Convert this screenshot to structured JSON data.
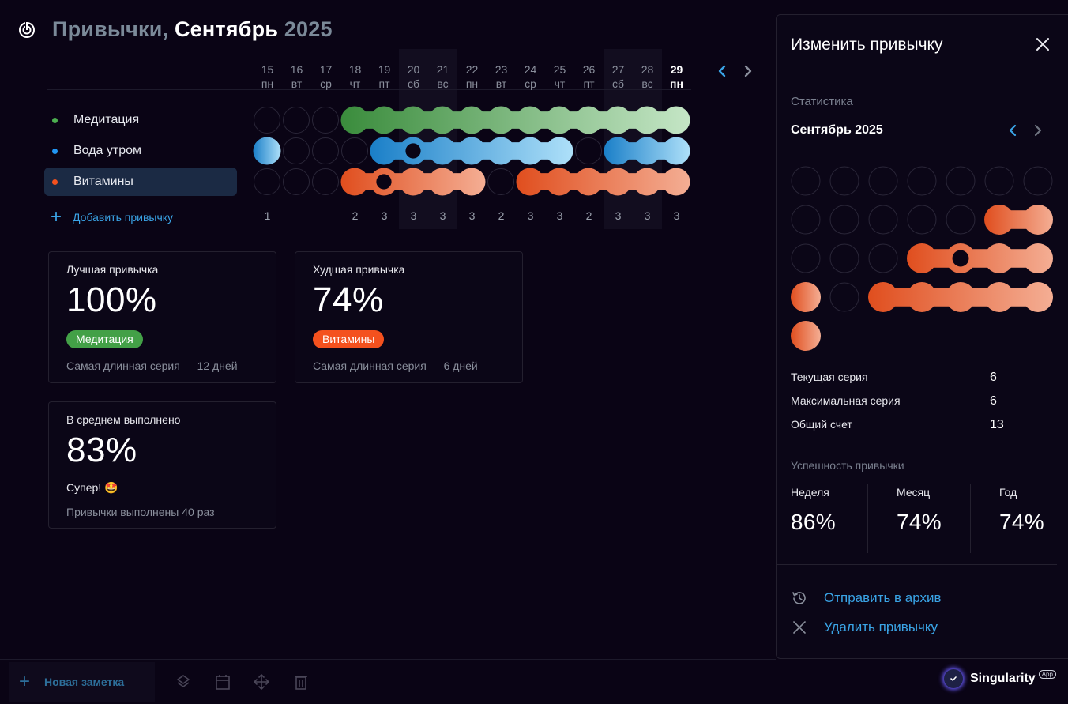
{
  "header": {
    "title_part1": "Привычки,",
    "title_part2": "Сентябрь",
    "title_part3": "2025"
  },
  "calendar": {
    "days": [
      {
        "num": "15",
        "dow": "пн",
        "weekend": false,
        "today": false,
        "count": "1"
      },
      {
        "num": "16",
        "dow": "вт",
        "weekend": false,
        "today": false,
        "count": ""
      },
      {
        "num": "17",
        "dow": "ср",
        "weekend": false,
        "today": false,
        "count": ""
      },
      {
        "num": "18",
        "dow": "чт",
        "weekend": false,
        "today": false,
        "count": "2"
      },
      {
        "num": "19",
        "dow": "пт",
        "weekend": false,
        "today": false,
        "count": "3"
      },
      {
        "num": "20",
        "dow": "сб",
        "weekend": true,
        "today": false,
        "count": "3"
      },
      {
        "num": "21",
        "dow": "вс",
        "weekend": true,
        "today": false,
        "count": "3"
      },
      {
        "num": "22",
        "dow": "пн",
        "weekend": false,
        "today": false,
        "count": "3"
      },
      {
        "num": "23",
        "dow": "вт",
        "weekend": false,
        "today": false,
        "count": "2"
      },
      {
        "num": "24",
        "dow": "ср",
        "weekend": false,
        "today": false,
        "count": "3"
      },
      {
        "num": "25",
        "dow": "чт",
        "weekend": false,
        "today": false,
        "count": "3"
      },
      {
        "num": "26",
        "dow": "пт",
        "weekend": false,
        "today": false,
        "count": "2"
      },
      {
        "num": "27",
        "dow": "сб",
        "weekend": true,
        "today": false,
        "count": "3"
      },
      {
        "num": "28",
        "dow": "вс",
        "weekend": true,
        "today": false,
        "count": "3"
      },
      {
        "num": "29",
        "dow": "пн",
        "weekend": false,
        "today": true,
        "count": "3"
      }
    ],
    "prev_icon": "chevron-left-icon",
    "next_icon": "chevron-right-icon"
  },
  "habits": [
    {
      "name": "Медитация",
      "color": "#4caf50",
      "from": "#3a8c3c",
      "to": "#c5e6c6",
      "done": [
        0,
        0,
        0,
        1,
        1,
        1,
        1,
        1,
        1,
        1,
        1,
        1,
        1,
        1,
        1
      ],
      "hole": -1,
      "selected": false
    },
    {
      "name": "Вода утром",
      "color": "#2196f3",
      "from": "#1a7fc8",
      "to": "#aee0f9",
      "done": [
        1,
        0,
        0,
        0,
        1,
        1,
        1,
        1,
        1,
        1,
        1,
        0,
        1,
        1,
        1
      ],
      "hole": 5,
      "selected": false,
      "continuesLeft": true
    },
    {
      "name": "Витамины",
      "color": "#f4511e",
      "from": "#e04e1e",
      "to": "#f4ae94",
      "done": [
        0,
        0,
        0,
        1,
        1,
        1,
        1,
        1,
        0,
        1,
        1,
        1,
        1,
        1,
        1
      ],
      "hole": 4,
      "selected": true
    }
  ],
  "add_habit_label": "Добавить привычку",
  "cards": {
    "best": {
      "label": "Лучшая привычка",
      "value": "100%",
      "badge": "Медитация",
      "badge_color": "#43a047",
      "note": "Самая длинная серия — 12 дней"
    },
    "worst": {
      "label": "Худшая привычка",
      "value": "74%",
      "badge": "Витамины",
      "badge_color": "#f4511e",
      "note": "Самая длинная серия — 6 дней"
    },
    "average": {
      "label": "В среднем выполнено",
      "value": "83%",
      "sub": "Супер! 🤩",
      "note": "Привычки выполнены 40 раз"
    }
  },
  "panel": {
    "title": "Изменить привычку",
    "stats_section": "Статистика",
    "month": "Сентябрь 2025",
    "month_grid": {
      "rows": [
        [
          0,
          0,
          0,
          0,
          0,
          0,
          0
        ],
        [
          0,
          0,
          0,
          0,
          0,
          1,
          1
        ],
        [
          0,
          0,
          0,
          1,
          1,
          1,
          1
        ],
        [
          1,
          0,
          1,
          1,
          1,
          1,
          1
        ],
        [
          1
        ]
      ],
      "hole": [
        2,
        4
      ],
      "from": "#e04e1e",
      "to": "#f4ae94"
    },
    "stats": [
      {
        "label": "Текущая серия",
        "value": "6"
      },
      {
        "label": "Максимальная серия",
        "value": "6"
      },
      {
        "label": "Общий счет",
        "value": "13"
      }
    ],
    "success_section": "Успешность привычки",
    "success": [
      {
        "label": "Неделя",
        "value": "86%"
      },
      {
        "label": "Месяц",
        "value": "74%"
      },
      {
        "label": "Год",
        "value": "74%"
      }
    ],
    "archive_label": "Отправить в архив",
    "delete_label": "Удалить привычку"
  },
  "bottom": {
    "new_note_label": "Новая заметка",
    "brand_name": "Singularity",
    "brand_tag": "App"
  },
  "colors": {
    "accent": "#3aa4e6",
    "background": "#0a0415"
  }
}
